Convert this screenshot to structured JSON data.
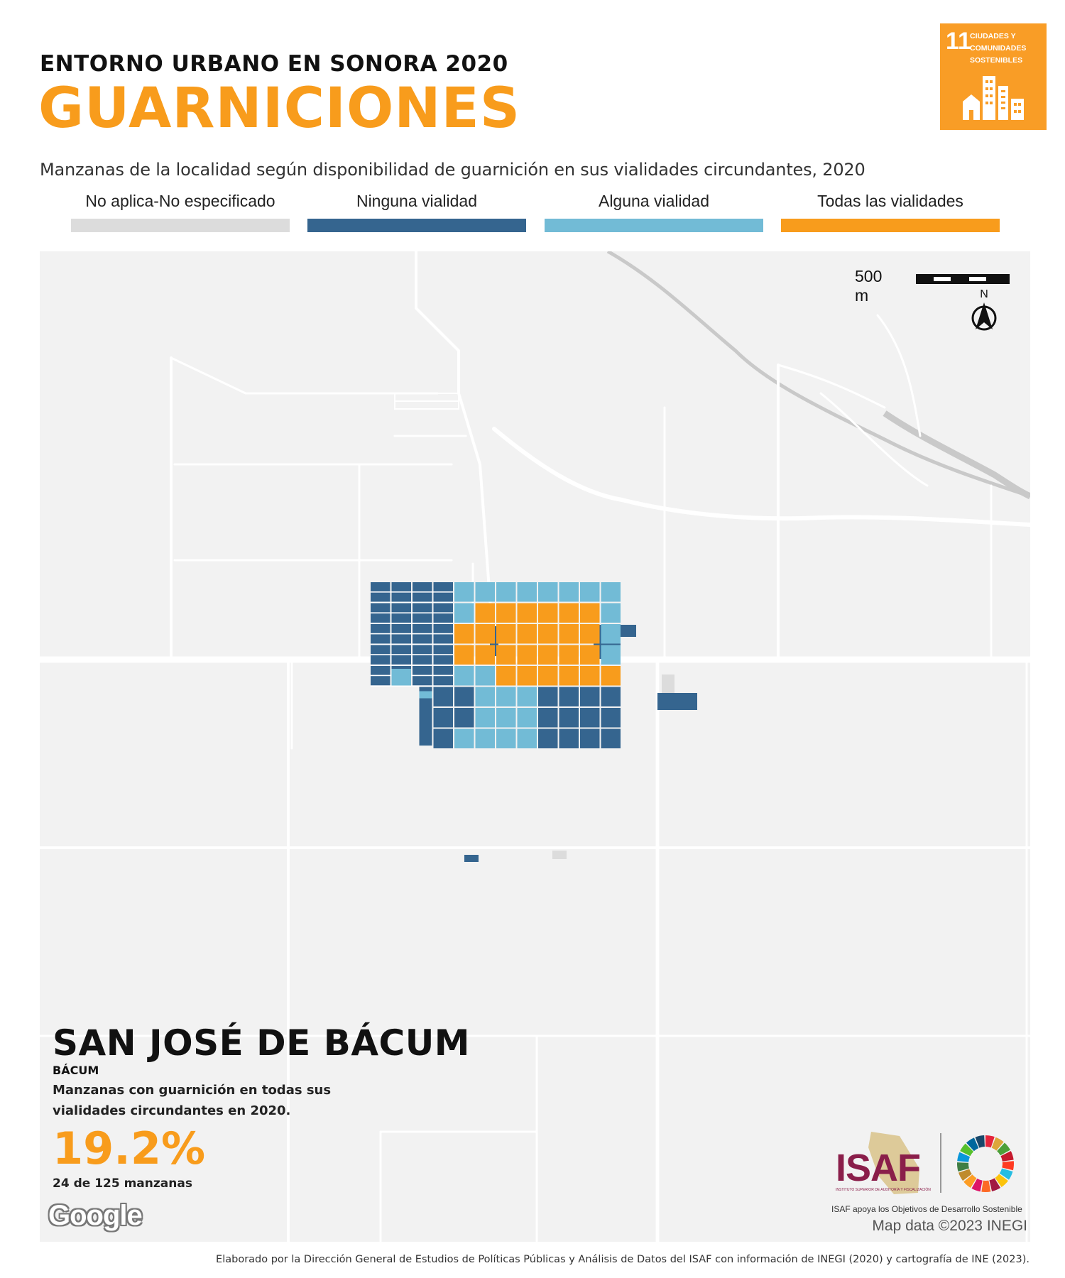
{
  "header": {
    "kicker": "ENTORNO URBANO EN SONORA 2020",
    "title": "GUARNICIONES",
    "subtitle": "Manzanas de la localidad según disponibilidad de guarnición en sus vialidades circundantes, 2020"
  },
  "sdg_badge": {
    "number": "11",
    "text": "CIUDADES Y COMUNIDADES SOSTENIBLES",
    "color": "#f99d26",
    "icon": "city-buildings-icon"
  },
  "legend": [
    {
      "label": "No aplica-No especificado",
      "color": "#dcdcdc"
    },
    {
      "label": "Ninguna vialidad",
      "color": "#35658f"
    },
    {
      "label": "Alguna vialidad",
      "color": "#72bbd6"
    },
    {
      "label": "Todas las vialidades",
      "color": "#f89c1c"
    }
  ],
  "map": {
    "scale_label": "500 m",
    "north_label": "N",
    "attribution": "Map data ©2023 INEGI",
    "google_logo": "Google",
    "background": "#f2f2f2"
  },
  "locality": {
    "name": "SAN JOSÉ DE BÁCUM",
    "municipality": "BÁCUM",
    "description": "Manzanas con guarnición en todas sus vialidades circundantes en 2020.",
    "percent": "19.2%",
    "percent_value": 19.2,
    "count_text": "24 de 125 manzanas",
    "blocks_all_roads": 24,
    "blocks_total": 125
  },
  "logos": {
    "isaf": "ISAF",
    "isaf_small": "INSTITUTO SUPERIOR DE AUDITORÍA Y FISCALIZACIÓN",
    "isaf_tagline": "ISAF apoya los Objetivos de Desarrollo Sostenible",
    "sdg_wheel": "sdg-wheel-icon"
  },
  "footer": {
    "credit": "Elaborado por la Dirección General de Estudios de Políticas Públicas y Análisis de Datos del ISAF con información de INEGI (2020) y cartografía de INE (2023)."
  }
}
